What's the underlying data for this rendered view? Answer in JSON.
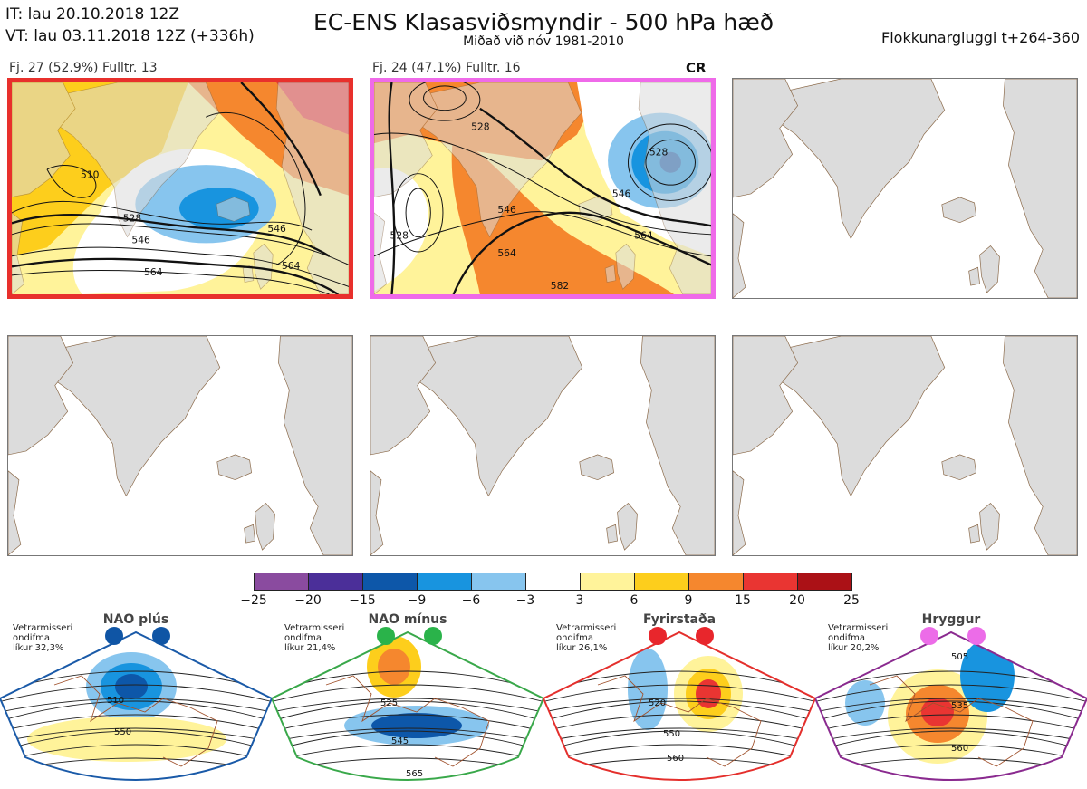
{
  "header": {
    "it_line": "IT: lau 20.10.2018 12Z",
    "vt_line": "VT: lau 03.11.2018 12Z  (+336h)",
    "title": "EC-ENS Klasasviðsmyndir - 500 hPa hæð",
    "subtitle": "Miðað við nóv 1981-2010",
    "window": "Flokkunargluggi t+264-360"
  },
  "clusters": [
    {
      "label": "Fj. 27 (52.9%)   Fulltr. 13",
      "border_color": "#e8302c",
      "contour_labels": [
        "510",
        "528",
        "546",
        "546",
        "564",
        "564"
      ]
    },
    {
      "label": "Fj. 24 (47.1%)   Fulltr. 16",
      "border_color": "#ef6ae9",
      "marker": "CR",
      "contour_labels": [
        "528",
        "528",
        "546",
        "546",
        "564",
        "564",
        "582",
        "528"
      ]
    }
  ],
  "colorbar": {
    "ticks": [
      "−25",
      "−20",
      "−15",
      "−9",
      "−6",
      "−3",
      "3",
      "6",
      "9",
      "15",
      "20",
      "25"
    ],
    "colors": [
      "#8a4b9f",
      "#4b2f99",
      "#0d57a9",
      "#1894df",
      "#87c5ee",
      "#ffffff",
      "#fff39a",
      "#fdce1c",
      "#f5872e",
      "#e93532",
      "#ab1116"
    ]
  },
  "regimes": [
    {
      "name": "NAO plús",
      "note": [
        "Vetrarmisseri",
        "ondifma",
        "líkur 32,3%"
      ],
      "color": "#1a5aa8",
      "dot_color": "#0f55a5",
      "labels": [
        "510",
        "550"
      ]
    },
    {
      "name": "NAO mínus",
      "note": [
        "Vetrarmisseri",
        "ondifma",
        "líkur 21,4%"
      ],
      "color": "#39a84a",
      "dot_color": "#2ab34a",
      "labels": [
        "525",
        "545",
        "565"
      ]
    },
    {
      "name": "Fyrirstaða",
      "note": [
        "Vetrarmisseri",
        "ondifma",
        "líkur 26,1%"
      ],
      "color": "#e42f2c",
      "dot_color": "#e8262c",
      "labels": [
        "520",
        "550",
        "560"
      ]
    },
    {
      "name": "Hryggur",
      "note": [
        "Vetrarmisseri",
        "ondifma",
        "líkur 20,2%"
      ],
      "color": "#8a2a8f",
      "dot_color": "#ec6ce8",
      "labels": [
        "505",
        "535",
        "560"
      ]
    }
  ]
}
